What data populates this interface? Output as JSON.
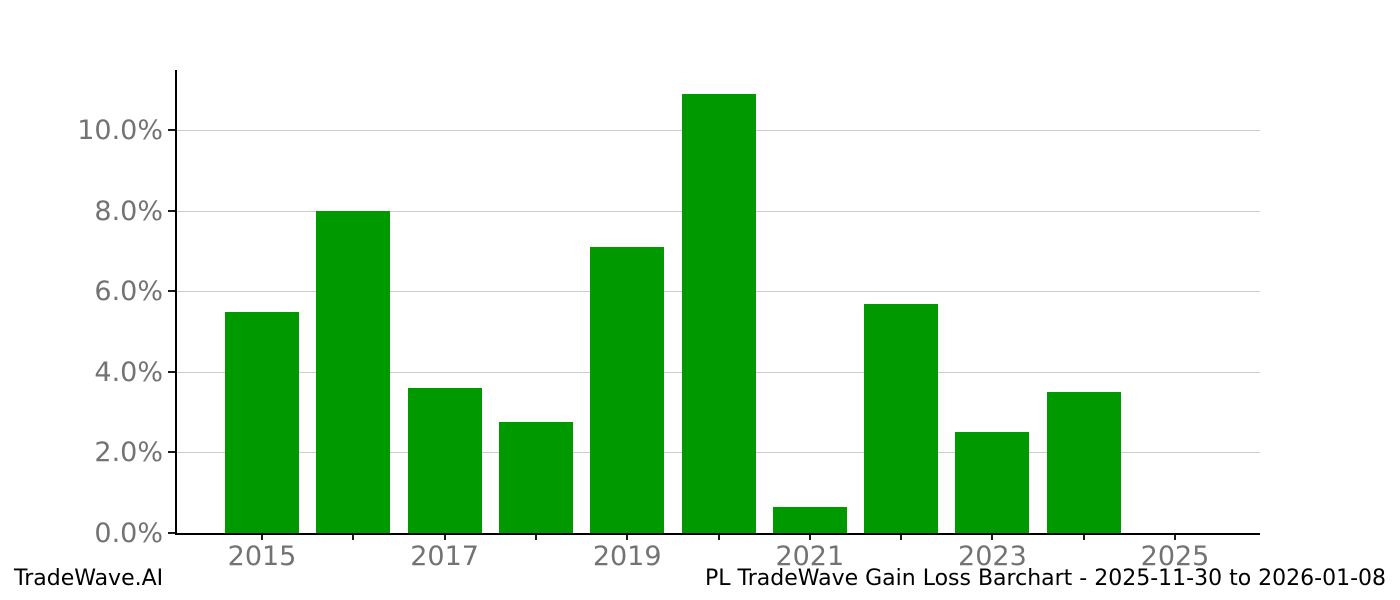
{
  "chart_data": {
    "type": "bar",
    "title": "",
    "xlabel": "",
    "ylabel": "",
    "categories": [
      "2015",
      "2016",
      "2017",
      "2018",
      "2019",
      "2020",
      "2021",
      "2022",
      "2023",
      "2024"
    ],
    "values": [
      5.5,
      8.0,
      3.6,
      2.75,
      7.1,
      10.9,
      0.65,
      5.7,
      2.5,
      3.5
    ],
    "unit": "%",
    "ylim": [
      0,
      11.5
    ],
    "y_ticks": [
      {
        "value": 0,
        "label": "0.0%"
      },
      {
        "value": 2,
        "label": "2.0%"
      },
      {
        "value": 4,
        "label": "4.0%"
      },
      {
        "value": 6,
        "label": "6.0%"
      },
      {
        "value": 8,
        "label": "8.0%"
      },
      {
        "value": 10,
        "label": "10.0%"
      }
    ],
    "x_axis_years": [
      2015,
      2016,
      2017,
      2018,
      2019,
      2020,
      2021,
      2022,
      2023,
      2024,
      2025
    ],
    "x_labeled_years": [
      "2015",
      "2017",
      "2019",
      "2021",
      "2023",
      "2025"
    ],
    "grid": "horizontal",
    "legend": "none"
  },
  "colors": {
    "bar": "#009a00",
    "grid": "#cccccc",
    "tick_label": "#737373",
    "spine": "#000000",
    "background": "#ffffff",
    "footer_text": "#000000"
  },
  "footer": {
    "brand": "TradeWave.AI",
    "title": "PL TradeWave Gain Loss Barchart - 2025-11-30 to 2026-01-08"
  }
}
